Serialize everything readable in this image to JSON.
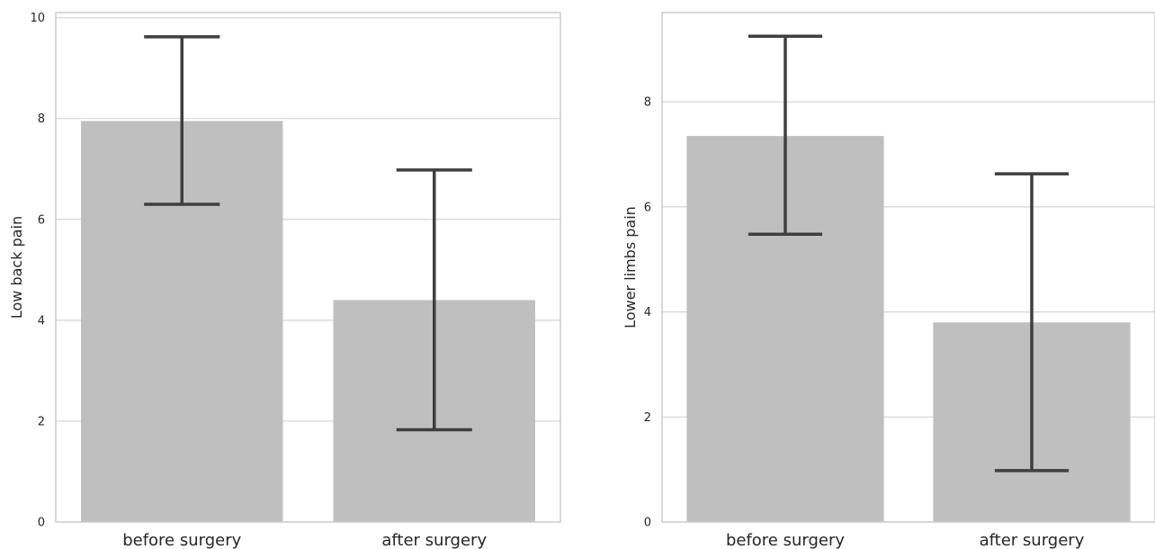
{
  "chart_data": [
    {
      "type": "bar",
      "categories": [
        "before surgery",
        "after surgery"
      ],
      "values": [
        7.95,
        4.4
      ],
      "error_low": [
        6.3,
        1.83
      ],
      "error_high": [
        9.62,
        6.98
      ],
      "xlabel": "",
      "ylabel": "Low back pain",
      "ylim": [
        0,
        10.1
      ],
      "yticks": [
        0,
        2,
        4,
        6,
        8,
        10
      ],
      "grid": true,
      "bar_color": "#bfbfbf",
      "error_color": "#3f3f3f"
    },
    {
      "type": "bar",
      "categories": [
        "before surgery",
        "after surgery"
      ],
      "values": [
        7.35,
        3.8
      ],
      "error_low": [
        5.48,
        0.98
      ],
      "error_high": [
        9.25,
        6.63
      ],
      "xlabel": "",
      "ylabel": "Lower limbs pain",
      "ylim": [
        0,
        9.7
      ],
      "yticks": [
        0,
        2,
        4,
        6,
        8
      ],
      "grid": true,
      "bar_color": "#bfbfbf",
      "error_color": "#3f3f3f"
    }
  ]
}
